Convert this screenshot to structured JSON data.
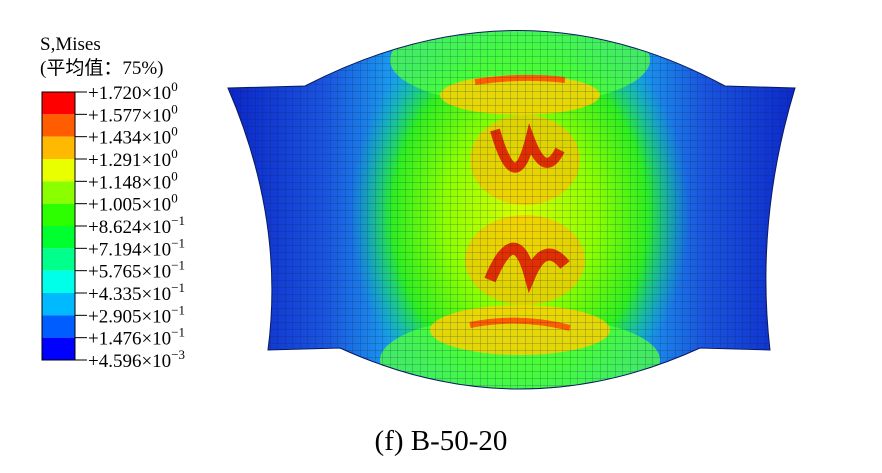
{
  "legend": {
    "title": "S,Mises",
    "subtitle": "(平均值：75%)",
    "colors": [
      "#ff0000",
      "#ff5d00",
      "#ffb900",
      "#e9ff00",
      "#8bff00",
      "#2eff00",
      "#00ff2e",
      "#00ff8b",
      "#00ffe8",
      "#00b9ff",
      "#005dff",
      "#0000ff"
    ],
    "labels": [
      {
        "text": "+1.720×10",
        "exponent": "0"
      },
      {
        "text": "+1.577×10",
        "exponent": "0"
      },
      {
        "text": "+1.434×10",
        "exponent": "0"
      },
      {
        "text": "+1.291×10",
        "exponent": "0"
      },
      {
        "text": "+1.148×10",
        "exponent": "0"
      },
      {
        "text": "+1.005×10",
        "exponent": "0"
      },
      {
        "text": "+8.624×10",
        "exponent": "−1"
      },
      {
        "text": "+7.194×10",
        "exponent": "−1"
      },
      {
        "text": "+5.765×10",
        "exponent": "−1"
      },
      {
        "text": "+4.335×10",
        "exponent": "−1"
      },
      {
        "text": "+2.905×10",
        "exponent": "−1"
      },
      {
        "text": "+1.476×10",
        "exponent": "−1"
      },
      {
        "text": "+4.596×10",
        "exponent": "−3"
      }
    ]
  },
  "caption": "(f) B-50-20"
}
